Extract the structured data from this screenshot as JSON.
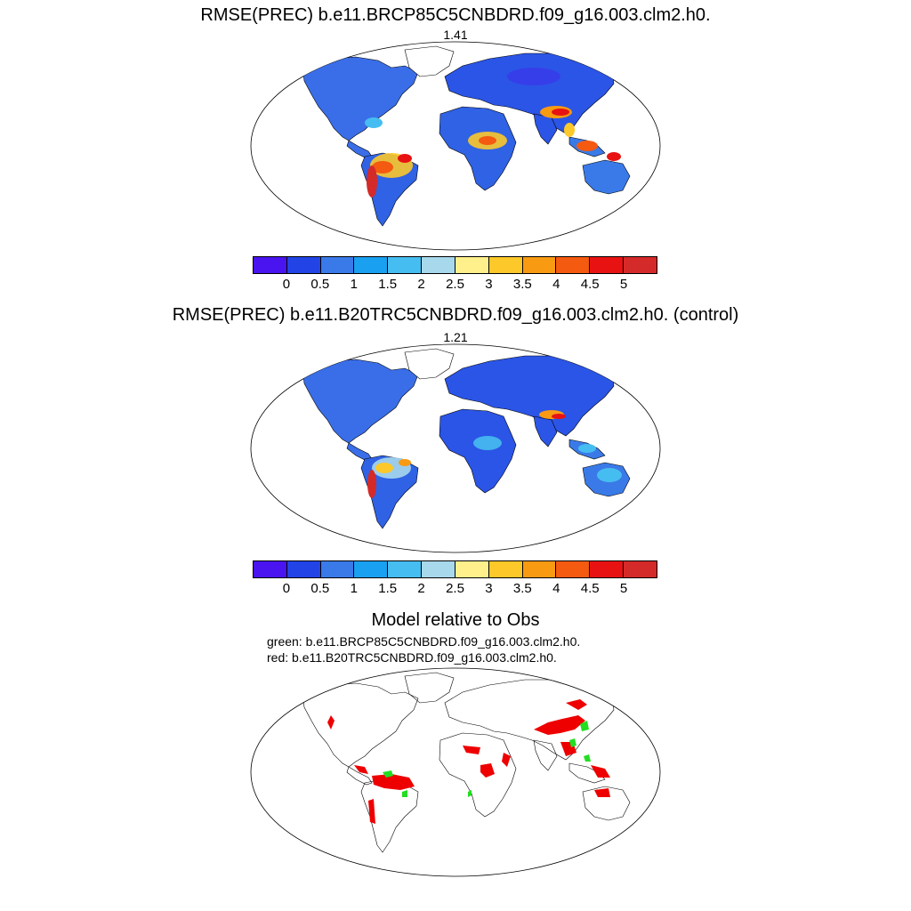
{
  "panel1": {
    "title": "RMSE(PREC) b.e11.BRCP85C5CNBDRD.f09_g16.003.clm2.h0.",
    "value": "1.41"
  },
  "panel2": {
    "title": "RMSE(PREC) b.e11.B20TRC5CNBDRD.f09_g16.003.clm2.h0. (control)",
    "value": "1.21"
  },
  "panel3": {
    "title": "Model relative to Obs",
    "legend_green": "green: b.e11.BRCP85C5CNBDRD.f09_g16.003.clm2.h0.",
    "legend_red": "red: b.e11.B20TRC5CNBDRD.f09_g16.003.clm2.h0."
  },
  "colorbar": {
    "colors": [
      "#4a14f0",
      "#2244e6",
      "#3a7ae8",
      "#1aa0f0",
      "#46bdf0",
      "#a8d8ec",
      "#fff08c",
      "#fcc82a",
      "#f89a12",
      "#f45a10",
      "#e81212",
      "#d42a2a"
    ],
    "labels": [
      "0",
      "0.5",
      "1",
      "1.5",
      "2",
      "2.5",
      "3",
      "3.5",
      "4",
      "4.5",
      "5"
    ]
  },
  "chart_data": [
    {
      "type": "heatmap",
      "title": "RMSE(PREC) b.e11.BRCP85C5CNBDRD.f09_g16.003.clm2.h0.",
      "global_value": 1.41,
      "levels": [
        0,
        0.5,
        1,
        1.5,
        2,
        2.5,
        3,
        3.5,
        4,
        4.5,
        5
      ]
    },
    {
      "type": "heatmap",
      "title": "RMSE(PREC) b.e11.B20TRC5CNBDRD.f09_g16.003.clm2.h0. (control)",
      "global_value": 1.21,
      "levels": [
        0,
        0.5,
        1,
        1.5,
        2,
        2.5,
        3,
        3.5,
        4,
        4.5,
        5
      ]
    },
    {
      "type": "heatmap",
      "title": "Model relative to Obs",
      "series": [
        {
          "name": "green: b.e11.BRCP85C5CNBDRD.f09_g16.003.clm2.h0.",
          "color": "#22dd22"
        },
        {
          "name": "red: b.e11.B20TRC5CNBDRD.f09_g16.003.clm2.h0.",
          "color": "#ee0000"
        }
      ]
    }
  ]
}
